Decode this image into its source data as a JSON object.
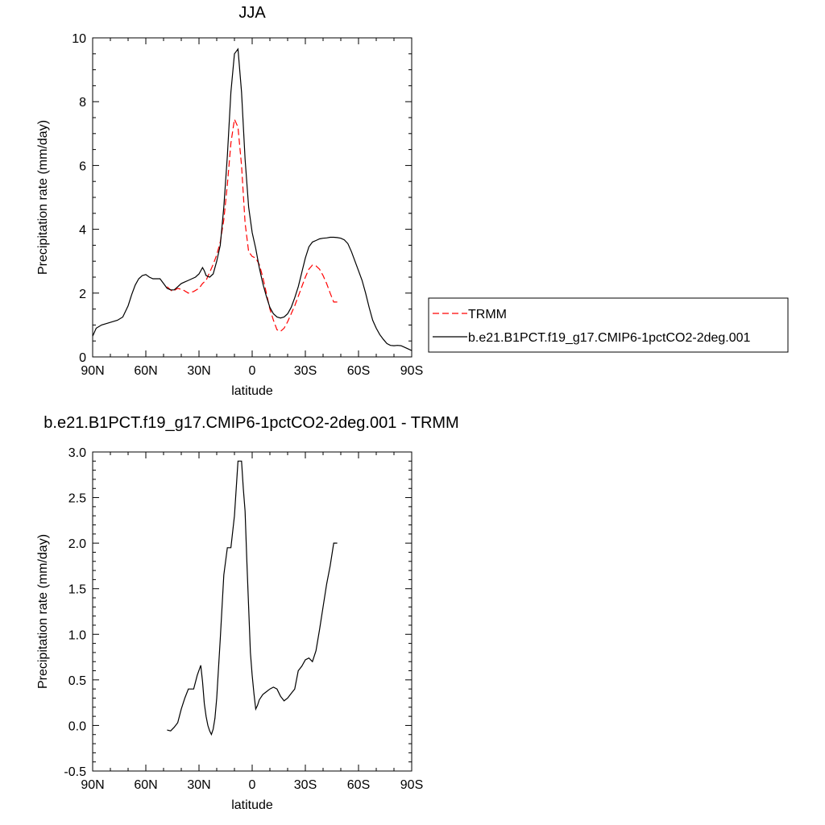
{
  "chart_data": [
    {
      "type": "line",
      "title": "JJA",
      "xlabel": "latitude",
      "ylabel": "Precipitation rate (mm/day)",
      "xlim": [
        90,
        -90
      ],
      "ylim": [
        0,
        10
      ],
      "x_ticks": [
        90,
        60,
        30,
        0,
        -30,
        -60,
        -90
      ],
      "x_tick_labels": [
        "90N",
        "60N",
        "30N",
        "0",
        "30S",
        "60S",
        "90S"
      ],
      "y_ticks": [
        0,
        2,
        4,
        6,
        8,
        10
      ],
      "y_tick_labels": [
        "0",
        "2",
        "4",
        "6",
        "8",
        "10"
      ],
      "legend_position": "right",
      "series": [
        {
          "name": "TRMM",
          "color": "#ff0000",
          "dash": "dashed",
          "x": [
            48,
            45,
            42,
            39,
            36,
            33,
            30,
            28,
            26,
            24,
            22,
            20,
            18,
            16,
            14,
            12,
            10,
            8,
            6,
            4,
            2,
            0,
            -2,
            -4,
            -6,
            -8,
            -10,
            -12,
            -14,
            -16,
            -18,
            -20,
            -22,
            -24,
            -26,
            -28,
            -30,
            -32,
            -34,
            -36,
            -38,
            -40,
            -42,
            -44,
            -46,
            -48
          ],
          "y": [
            2.2,
            2.05,
            2.15,
            2.1,
            2.0,
            2.05,
            2.15,
            2.3,
            2.4,
            2.65,
            2.9,
            3.2,
            3.6,
            4.3,
            5.4,
            6.7,
            7.45,
            7.2,
            6.0,
            4.2,
            3.3,
            3.15,
            3.1,
            2.9,
            2.5,
            2.0,
            1.5,
            1.15,
            0.85,
            0.8,
            0.9,
            1.1,
            1.35,
            1.6,
            1.9,
            2.2,
            2.5,
            2.75,
            2.88,
            2.85,
            2.75,
            2.55,
            2.3,
            2.0,
            1.72,
            1.72
          ]
        },
        {
          "name": "b.e21.B1PCT.f19_g17.CMIP6-1pctCO2-2deg.001",
          "color": "#000000",
          "dash": "solid",
          "x": [
            90,
            88,
            85,
            82,
            79,
            76,
            73,
            70,
            68,
            66,
            64,
            62,
            60,
            58,
            56,
            54,
            52,
            50,
            48,
            46,
            44,
            42,
            40,
            38,
            36,
            34,
            32,
            30,
            28,
            27,
            26,
            24,
            22,
            20,
            18,
            16,
            14,
            12,
            10,
            8,
            6,
            4,
            2,
            0,
            -2,
            -4,
            -6,
            -8,
            -10,
            -12,
            -14,
            -16,
            -18,
            -20,
            -22,
            -24,
            -26,
            -28,
            -30,
            -32,
            -34,
            -36,
            -38,
            -40,
            -42,
            -44,
            -46,
            -48,
            -50,
            -52,
            -54,
            -56,
            -58,
            -60,
            -62,
            -64,
            -66,
            -68,
            -70,
            -72,
            -74,
            -76,
            -78,
            -80,
            -82,
            -84,
            -86,
            -88,
            -90
          ],
          "y": [
            0.65,
            0.9,
            1.0,
            1.05,
            1.1,
            1.15,
            1.25,
            1.6,
            1.95,
            2.25,
            2.45,
            2.55,
            2.58,
            2.5,
            2.45,
            2.45,
            2.45,
            2.3,
            2.15,
            2.1,
            2.1,
            2.2,
            2.3,
            2.35,
            2.4,
            2.45,
            2.5,
            2.6,
            2.8,
            2.7,
            2.55,
            2.5,
            2.6,
            3.0,
            3.5,
            4.7,
            6.3,
            8.3,
            9.5,
            9.65,
            8.3,
            6.2,
            4.7,
            3.9,
            3.4,
            2.8,
            2.3,
            1.9,
            1.55,
            1.35,
            1.25,
            1.22,
            1.25,
            1.35,
            1.55,
            1.85,
            2.2,
            2.65,
            3.1,
            3.45,
            3.6,
            3.65,
            3.7,
            3.72,
            3.73,
            3.75,
            3.75,
            3.74,
            3.72,
            3.67,
            3.55,
            3.3,
            3.0,
            2.7,
            2.4,
            2.0,
            1.55,
            1.15,
            0.9,
            0.7,
            0.55,
            0.42,
            0.36,
            0.35,
            0.36,
            0.35,
            0.3,
            0.25,
            0.2
          ]
        }
      ]
    },
    {
      "type": "line",
      "title": "b.e21.B1PCT.f19_g17.CMIP6-1pctCO2-2deg.001 - TRMM",
      "xlabel": "latitude",
      "ylabel": "Precipitation rate (mm/day)",
      "xlim": [
        90,
        -90
      ],
      "ylim": [
        -0.5,
        3.0
      ],
      "x_ticks": [
        90,
        60,
        30,
        0,
        -30,
        -60,
        -90
      ],
      "x_tick_labels": [
        "90N",
        "60N",
        "30N",
        "0",
        "30S",
        "60S",
        "90S"
      ],
      "y_ticks": [
        -0.5,
        0.0,
        0.5,
        1.0,
        1.5,
        2.0,
        2.5,
        3.0
      ],
      "y_tick_labels": [
        "-0.5",
        "0.0",
        "0.5",
        "1.0",
        "1.5",
        "2.0",
        "2.5",
        "3.0"
      ],
      "series": [
        {
          "color": "#000000",
          "dash": "solid",
          "x": [
            48,
            46,
            44,
            42,
            40,
            38,
            36,
            34,
            33,
            31,
            29,
            28,
            27,
            26,
            25,
            24,
            23,
            22,
            21,
            20,
            18,
            16,
            14,
            12,
            10,
            9,
            8,
            7,
            6,
            5,
            4,
            3,
            2,
            1,
            0,
            -1,
            -2,
            -3,
            -4,
            -6,
            -8,
            -10,
            -12,
            -14,
            -16,
            -18,
            -20,
            -22,
            -24,
            -26,
            -28,
            -30,
            -32,
            -34,
            -36,
            -38,
            -40,
            -42,
            -44,
            -46,
            -48
          ],
          "y": [
            -0.05,
            -0.06,
            -0.02,
            0.03,
            0.18,
            0.3,
            0.4,
            0.4,
            0.4,
            0.55,
            0.66,
            0.48,
            0.24,
            0.1,
            0.0,
            -0.06,
            -0.1,
            -0.04,
            0.08,
            0.3,
            0.95,
            1.65,
            1.95,
            1.95,
            2.3,
            2.6,
            2.9,
            2.9,
            2.9,
            2.6,
            2.35,
            1.8,
            1.3,
            0.8,
            0.55,
            0.35,
            0.18,
            0.22,
            0.28,
            0.34,
            0.37,
            0.4,
            0.42,
            0.4,
            0.32,
            0.27,
            0.3,
            0.35,
            0.4,
            0.6,
            0.65,
            0.72,
            0.74,
            0.7,
            0.82,
            1.05,
            1.3,
            1.55,
            1.75,
            2.0,
            2.0
          ]
        }
      ]
    }
  ]
}
